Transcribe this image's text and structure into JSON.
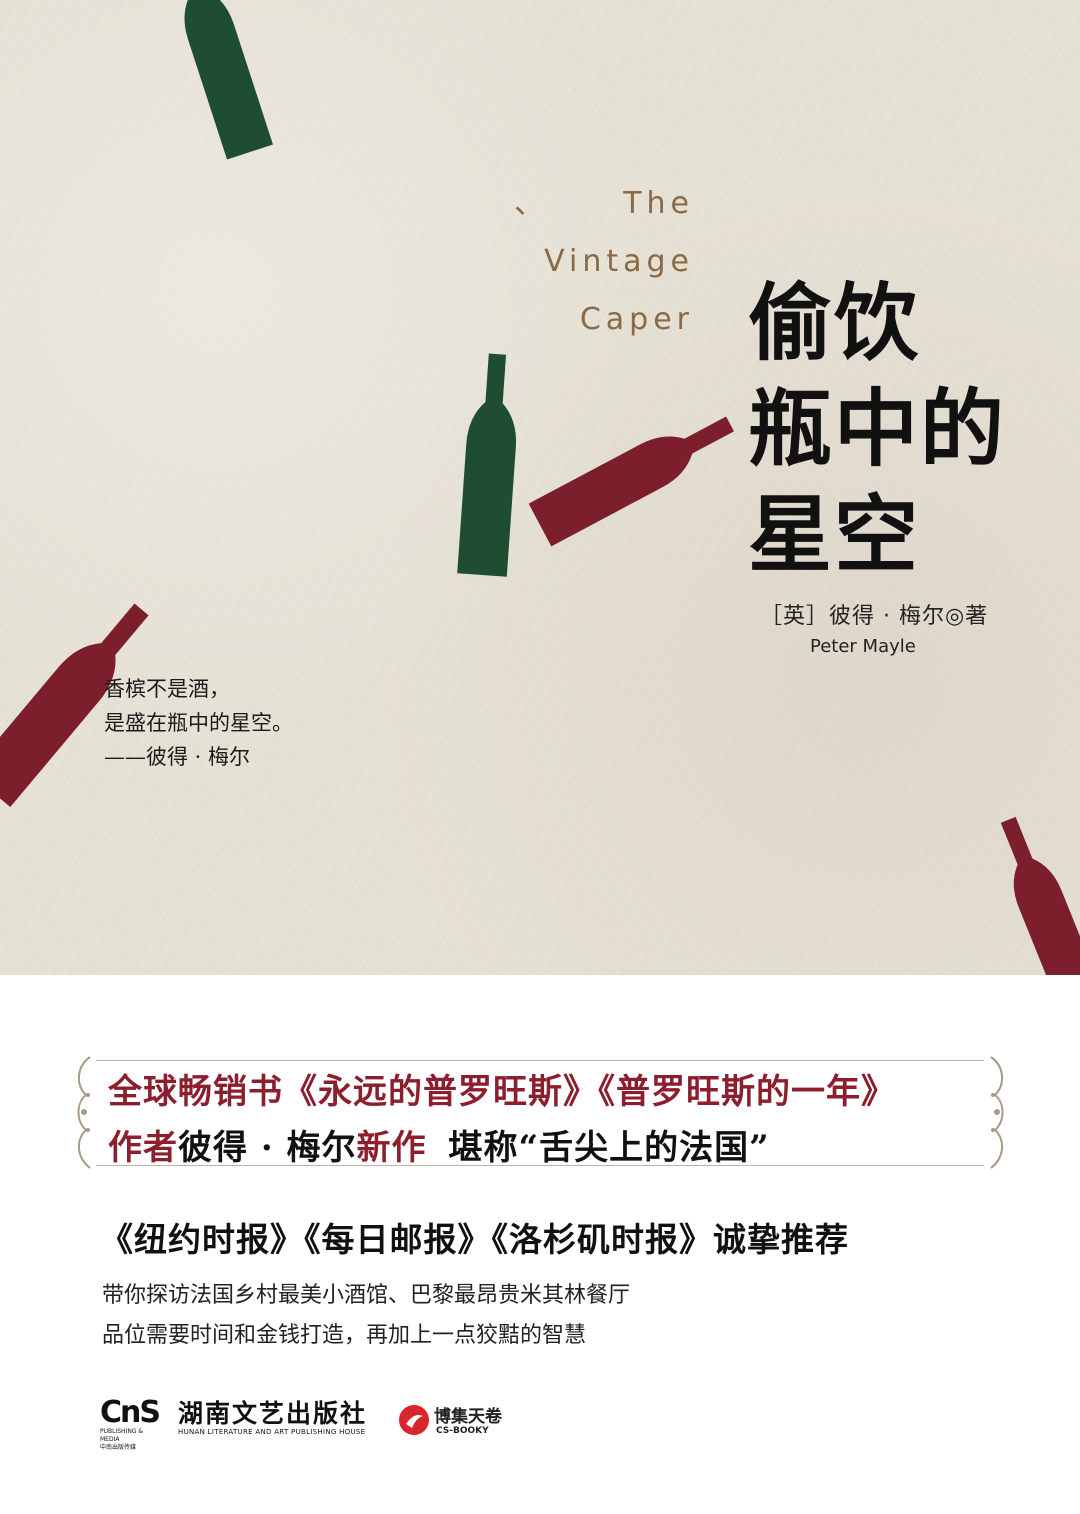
{
  "cover": {
    "en_title": {
      "dot": "、",
      "line1": "The",
      "line2": "Vintage",
      "line3": "Caper"
    },
    "cn_title": {
      "line1": "偷饮",
      "line2": "瓶中的",
      "line3": "星空"
    },
    "author": {
      "cn": "［英］彼得 · 梅尔◎著",
      "en": "Peter Mayle"
    },
    "quote": {
      "line1": "香槟不是酒，",
      "line2": "是盛在瓶中的星空。",
      "line3": "——彼得 · 梅尔"
    },
    "colors": {
      "green": "#1f4d32",
      "red": "#7c1e2c",
      "paper": "#e6e1d5"
    }
  },
  "promo": {
    "headline1": "全球畅销书《永远的普罗旺斯》《普罗旺斯的一年》",
    "headline2_a": "作者",
    "headline2_b": "彼得 · 梅尔",
    "headline2_c": "新作",
    "headline2_d": "堪称“舌尖上的法国”",
    "recommend": "《纽约时报》《每日邮报》《洛杉矶时报》诚挚推荐",
    "desc1": "带你探访法国乡村最美小酒馆、巴黎最昂贵米其林餐厅",
    "desc2": "品位需要时间和金钱打造，再加上一点狡黠的智慧",
    "accent": "#8c1f2d"
  },
  "publishers": {
    "cns_mark": "CnS",
    "cns_sub1": "PUBLISHING & MEDIA",
    "cns_sub2": "中南出版传媒",
    "hunan_cn": "湖南文艺出版社",
    "hunan_en": "HUNAN LITERATURE AND ART PUBLISHING HOUSE",
    "bojie_cn": "博集天卷",
    "bojie_en": "CS-BOOKY"
  }
}
